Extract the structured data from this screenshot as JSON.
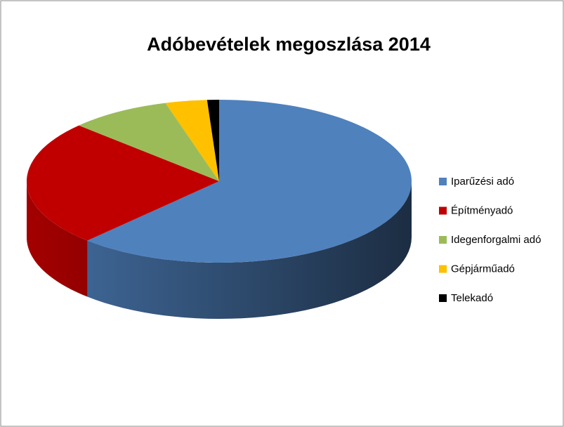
{
  "chart_data": {
    "type": "pie",
    "title": "Adóbevételek megoszlása 2014",
    "categories": [
      "Iparűzési adó",
      "Építményadó",
      "Idegenforgalmi adó",
      "Gépjárműadó",
      "Telekadó"
    ],
    "values": [
      62,
      25,
      8.5,
      3.5,
      1
    ],
    "colors": [
      "#4f81bd",
      "#c00000",
      "#9bbb59",
      "#ffc000",
      "#000000"
    ],
    "legend": "right"
  }
}
